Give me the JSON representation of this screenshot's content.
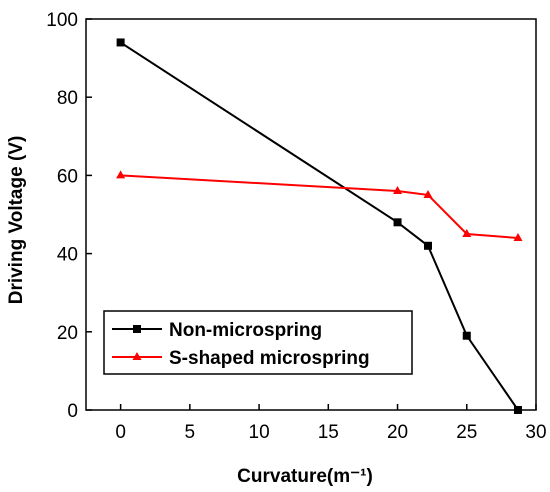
{
  "chart_data": {
    "type": "line",
    "xlabel": "Curvature(m⁻¹)",
    "ylabel": "Driving Voltage (V)",
    "xlim": [
      -2.5,
      30
    ],
    "ylim": [
      0,
      100
    ],
    "xticks": [
      0,
      5,
      10,
      15,
      20,
      25,
      30
    ],
    "yticks": [
      0,
      20,
      40,
      60,
      80,
      100
    ],
    "grid": false,
    "legend_position": "bottom-left",
    "series": [
      {
        "name": "Non-microspring",
        "color": "#000000",
        "marker": "square",
        "x": [
          0,
          20,
          22.2,
          25,
          28.7
        ],
        "y": [
          94,
          48,
          42,
          19,
          0
        ]
      },
      {
        "name": "S-shaped microspring",
        "color": "#ff0000",
        "marker": "triangle",
        "x": [
          0,
          20,
          22.2,
          25,
          28.7
        ],
        "y": [
          60,
          56,
          55,
          45,
          44
        ]
      }
    ]
  }
}
